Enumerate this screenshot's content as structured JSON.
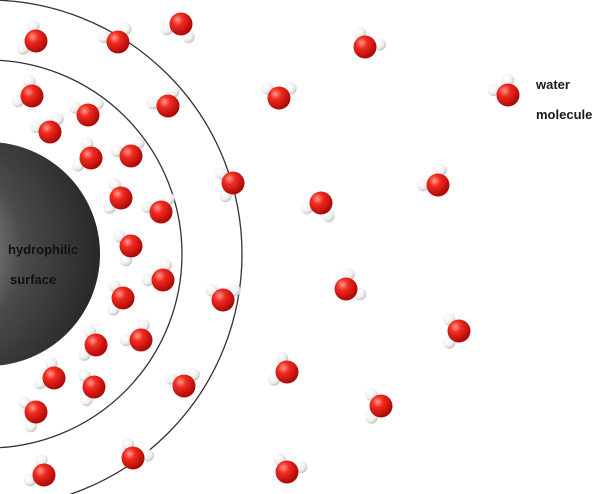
{
  "surface": {
    "label_line1": "hydrophilic",
    "label_line2": "surface"
  },
  "legend": {
    "label_line1": "water",
    "label_line2": "molecule"
  },
  "colors": {
    "oxygen": "#e8201c",
    "hydrogen": "#f2f2f2",
    "surface": "#3c3c3c",
    "shell_line": "#333333",
    "background": "#ffffff"
  }
}
